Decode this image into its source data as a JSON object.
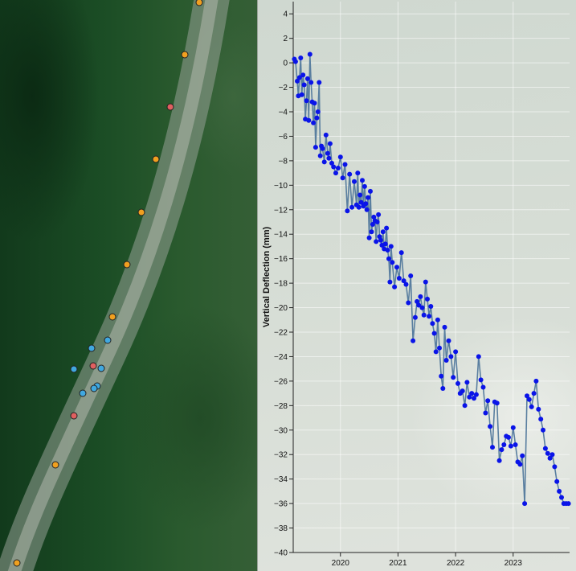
{
  "map": {
    "points": [
      {
        "color": "#f0a020"
      },
      {
        "color": "#f0a020"
      },
      {
        "color": "#e06060"
      },
      {
        "color": "#f0a020"
      },
      {
        "color": "#f0a020"
      },
      {
        "color": "#f0a020"
      },
      {
        "color": "#f0a020"
      },
      {
        "color": "#40a8e0"
      },
      {
        "color": "#40a8e0"
      },
      {
        "color": "#e06060"
      },
      {
        "color": "#40a8e0"
      },
      {
        "color": "#40a8e0"
      },
      {
        "color": "#40a8e0"
      },
      {
        "color": "#40a8e0"
      },
      {
        "color": "#40a8e0"
      },
      {
        "color": "#e06060"
      },
      {
        "color": "#f0a020"
      },
      {
        "color": "#f0a020"
      }
    ]
  },
  "chart_data": {
    "type": "line",
    "title": "",
    "xlabel": "",
    "ylabel": "Vertical Deflection (mm)",
    "xlim": [
      2019.18,
      2023.98
    ],
    "ylim": [
      -40,
      5
    ],
    "xticks": [
      2020,
      2021,
      2022,
      2023
    ],
    "xtick_labels": [
      "2020",
      "2021",
      "2022",
      "2023"
    ],
    "yticks": [
      4,
      2,
      0,
      -2,
      -4,
      -6,
      -8,
      -10,
      -12,
      -14,
      -16,
      -18,
      -20,
      -22,
      -24,
      -26,
      -28,
      -30,
      -32,
      -34,
      -36,
      -38,
      -40
    ],
    "ytick_labels": [
      "4",
      "2",
      "0",
      "−2",
      "−4",
      "−6",
      "−8",
      "−10",
      "−12",
      "−14",
      "−16",
      "−18",
      "−20",
      "−22",
      "−24",
      "−26",
      "−28",
      "−30",
      "−32",
      "−34",
      "−36",
      "−38",
      "−40"
    ],
    "grid": true,
    "colors": {
      "line": "#5a7fa0",
      "marker": "#0a14e8",
      "axis": "#222222",
      "grid": "#ffffff"
    },
    "series": [
      {
        "name": "Vertical Deflection",
        "x": [
          2019.2,
          2019.22,
          2019.25,
          2019.27,
          2019.29,
          2019.31,
          2019.33,
          2019.35,
          2019.37,
          2019.39,
          2019.41,
          2019.43,
          2019.45,
          2019.47,
          2019.49,
          2019.51,
          2019.53,
          2019.55,
          2019.57,
          2019.59,
          2019.61,
          2019.63,
          2019.65,
          2019.67,
          2019.69,
          2019.72,
          2019.75,
          2019.78,
          2019.8,
          2019.82,
          2019.85,
          2019.88,
          2019.92,
          2019.96,
          2020.0,
          2020.04,
          2020.08,
          2020.12,
          2020.16,
          2020.2,
          2020.24,
          2020.28,
          2020.3,
          2020.32,
          2020.34,
          2020.36,
          2020.38,
          2020.4,
          2020.42,
          2020.44,
          2020.46,
          2020.48,
          2020.5,
          2020.52,
          2020.54,
          2020.56,
          2020.58,
          2020.6,
          2020.62,
          2020.64,
          2020.66,
          2020.68,
          2020.7,
          2020.72,
          2020.74,
          2020.76,
          2020.78,
          2020.8,
          2020.82,
          2020.84,
          2020.86,
          2020.88,
          2020.9,
          2020.94,
          2020.98,
          2021.02,
          2021.06,
          2021.1,
          2021.14,
          2021.18,
          2021.22,
          2021.26,
          2021.3,
          2021.33,
          2021.36,
          2021.39,
          2021.42,
          2021.45,
          2021.48,
          2021.51,
          2021.54,
          2021.57,
          2021.6,
          2021.63,
          2021.66,
          2021.69,
          2021.72,
          2021.75,
          2021.78,
          2021.81,
          2021.84,
          2021.88,
          2021.92,
          2021.96,
          2022.0,
          2022.04,
          2022.08,
          2022.12,
          2022.16,
          2022.2,
          2022.24,
          2022.28,
          2022.32,
          2022.36,
          2022.4,
          2022.44,
          2022.48,
          2022.52,
          2022.56,
          2022.6,
          2022.64,
          2022.68,
          2022.72,
          2022.76,
          2022.8,
          2022.84,
          2022.88,
          2022.92,
          2022.96,
          2023.0,
          2023.04,
          2023.08,
          2023.12,
          2023.16,
          2023.2,
          2023.24,
          2023.28,
          2023.32,
          2023.36,
          2023.4,
          2023.44,
          2023.48,
          2023.52,
          2023.56,
          2023.6,
          2023.64,
          2023.68,
          2023.72,
          2023.76,
          2023.8,
          2023.84,
          2023.88,
          2023.92,
          2023.96
        ],
        "y": [
          0.3,
          0.1,
          -1.5,
          -2.7,
          -1.2,
          0.4,
          -2.6,
          -1.0,
          -1.8,
          -4.6,
          -3.1,
          -1.3,
          -4.7,
          0.7,
          -1.6,
          -3.2,
          -4.9,
          -3.3,
          -6.9,
          -4.5,
          -4.0,
          -1.6,
          -7.6,
          -6.8,
          -7.0,
          -8.1,
          -5.9,
          -7.4,
          -7.8,
          -6.6,
          -8.2,
          -8.5,
          -9.0,
          -8.6,
          -7.7,
          -9.4,
          -8.3,
          -12.1,
          -9.1,
          -11.8,
          -9.7,
          -11.6,
          -9.0,
          -11.8,
          -10.8,
          -11.4,
          -9.6,
          -11.7,
          -10.1,
          -11.5,
          -12.0,
          -11.0,
          -14.3,
          -10.5,
          -13.8,
          -13.2,
          -12.6,
          -12.9,
          -14.6,
          -13.0,
          -12.4,
          -14.2,
          -14.5,
          -14.9,
          -13.8,
          -15.2,
          -14.8,
          -13.5,
          -15.3,
          -16.0,
          -17.9,
          -15.0,
          -16.3,
          -18.3,
          -16.7,
          -17.6,
          -15.5,
          -17.8,
          -18.1,
          -19.6,
          -17.4,
          -22.7,
          -20.8,
          -19.5,
          -19.8,
          -19.1,
          -20.0,
          -20.6,
          -17.9,
          -19.3,
          -20.7,
          -19.9,
          -21.3,
          -22.1,
          -23.6,
          -21.0,
          -23.3,
          -25.6,
          -26.6,
          -21.6,
          -24.3,
          -22.7,
          -24.0,
          -25.7,
          -23.6,
          -26.2,
          -27.0,
          -26.8,
          -28.0,
          -26.1,
          -27.3,
          -27.0,
          -27.4,
          -27.1,
          -24.0,
          -25.9,
          -26.5,
          -28.6,
          -27.6,
          -29.7,
          -31.4,
          -27.7,
          -27.8,
          -32.5,
          -31.6,
          -31.2,
          -30.5,
          -30.6,
          -31.3,
          -29.8,
          -31.2,
          -32.6,
          -32.8,
          -32.1,
          -36.0,
          -27.2,
          -27.5,
          -28.1,
          -27.0,
          -26.0,
          -28.3,
          -29.1,
          -30.0,
          -31.5,
          -31.9,
          -32.3,
          -32.0,
          -33.0,
          -34.2,
          -35.0,
          -35.5,
          -36.0,
          -36.0,
          -36.0
        ]
      }
    ]
  }
}
